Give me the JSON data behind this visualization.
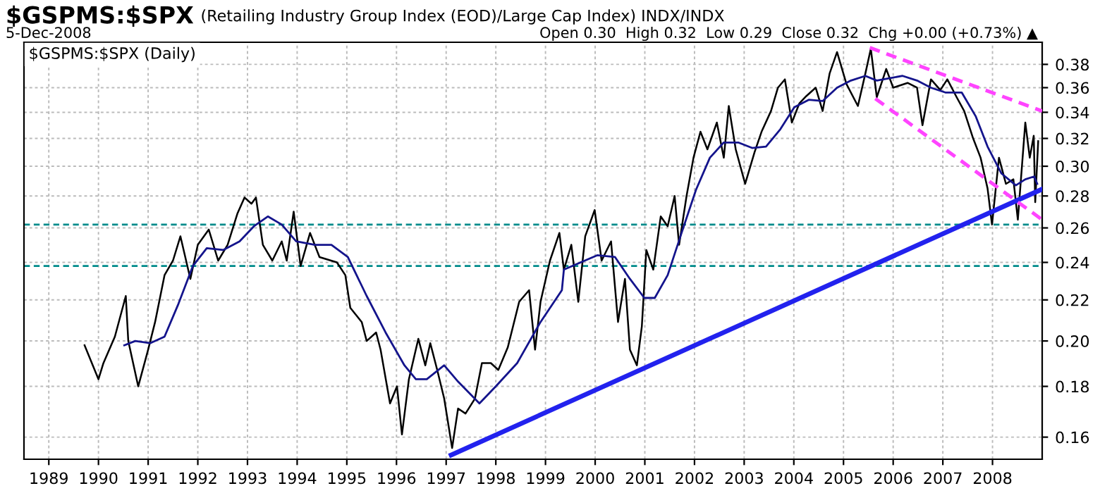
{
  "chart_data": {
    "type": "line",
    "title": "$GSPMS:$SPX",
    "subtitle": "(Retailing Industry Group Index (EOD)/Large Cap Index) INDX/INDX",
    "annotations": [
      "5-Dec-2008",
      "Open 0.30  High 0.32  Low 0.29  Close 0.32  Chg +0.00 (+0.73%) ▲"
    ],
    "log": "y",
    "grid": true,
    "legend": "top left",
    "xlim": [
      1988.5,
      2009.0
    ],
    "xticks": [
      1989,
      1990,
      1991,
      1992,
      1993,
      1994,
      1995,
      1996,
      1997,
      1998,
      1999,
      2000,
      2001,
      2002,
      2003,
      2004,
      2005,
      2006,
      2007,
      2008
    ],
    "ylim": [
      0.152,
      0.4
    ],
    "yticks": [
      0.16,
      0.18,
      {
        "value": 0.2,
        "label": "0.20"
      },
      0.22,
      0.24,
      0.26,
      0.28,
      {
        "value": 0.3,
        "label": "0.30"
      },
      0.32,
      0.34,
      0.36,
      0.38
    ],
    "ref_lines": [
      {
        "axis": "y",
        "value": 0.262,
        "color": "#008b8b",
        "line_style": "dashed"
      },
      {
        "axis": "y",
        "value": 0.238,
        "color": "#008b8b",
        "line_style": "dashed"
      }
    ],
    "series": [
      {
        "name": "$GSPMS:$SPX (Daily)",
        "color": "#000000",
        "x": [
          1989.72,
          1990.0,
          1990.1,
          1990.33,
          1990.55,
          1990.6,
          1990.8,
          1991.0,
          1991.14,
          1991.33,
          1991.5,
          1991.65,
          1991.85,
          1992.0,
          1992.22,
          1992.41,
          1992.6,
          1992.8,
          1992.94,
          1993.08,
          1993.17,
          1993.31,
          1993.5,
          1993.69,
          1993.79,
          1993.93,
          1994.07,
          1994.26,
          1994.45,
          1994.8,
          1994.97,
          1995.07,
          1995.3,
          1995.4,
          1995.59,
          1995.68,
          1995.87,
          1996.01,
          1996.11,
          1996.25,
          1996.44,
          1996.58,
          1996.68,
          1996.82,
          1996.96,
          1997.12,
          1997.24,
          1997.39,
          1997.58,
          1997.72,
          1997.9,
          1998.05,
          1998.24,
          1998.47,
          1998.67,
          1998.79,
          1998.9,
          1999.09,
          1999.28,
          1999.37,
          1999.52,
          1999.66,
          1999.8,
          1999.99,
          2000.13,
          2000.32,
          2000.46,
          2000.6,
          2000.7,
          2000.84,
          2000.94,
          2001.03,
          2001.17,
          2001.32,
          2001.46,
          2001.6,
          2001.69,
          2001.84,
          2001.98,
          2002.12,
          2002.26,
          2002.45,
          2002.59,
          2002.69,
          2002.83,
          2003.02,
          2003.21,
          2003.35,
          2003.54,
          2003.68,
          2003.82,
          2003.96,
          2004.11,
          2004.25,
          2004.44,
          2004.58,
          2004.72,
          2004.87,
          2005.06,
          2005.29,
          2005.44,
          2005.55,
          2005.67,
          2005.86,
          2006.0,
          2006.29,
          2006.48,
          2006.59,
          2006.76,
          2006.95,
          2007.09,
          2007.28,
          2007.43,
          2007.61,
          2007.76,
          2007.9,
          2007.99,
          2008.13,
          2008.27,
          2008.42,
          2008.51,
          2008.66,
          2008.75,
          2008.83,
          2008.86,
          2008.92
        ],
        "values": [
          0.198,
          0.183,
          0.19,
          0.202,
          0.222,
          0.2,
          0.18,
          0.196,
          0.209,
          0.233,
          0.241,
          0.255,
          0.231,
          0.25,
          0.259,
          0.241,
          0.25,
          0.269,
          0.279,
          0.275,
          0.279,
          0.25,
          0.241,
          0.252,
          0.241,
          0.27,
          0.238,
          0.257,
          0.243,
          0.24,
          0.233,
          0.216,
          0.209,
          0.2,
          0.204,
          0.196,
          0.173,
          0.18,
          0.161,
          0.183,
          0.201,
          0.189,
          0.199,
          0.187,
          0.175,
          0.156,
          0.171,
          0.169,
          0.175,
          0.19,
          0.19,
          0.187,
          0.197,
          0.219,
          0.225,
          0.196,
          0.219,
          0.241,
          0.257,
          0.236,
          0.25,
          0.219,
          0.255,
          0.271,
          0.241,
          0.252,
          0.209,
          0.231,
          0.196,
          0.189,
          0.207,
          0.247,
          0.236,
          0.267,
          0.261,
          0.28,
          0.25,
          0.28,
          0.306,
          0.325,
          0.312,
          0.332,
          0.306,
          0.345,
          0.312,
          0.288,
          0.31,
          0.325,
          0.341,
          0.36,
          0.367,
          0.332,
          0.347,
          0.353,
          0.36,
          0.341,
          0.372,
          0.391,
          0.363,
          0.345,
          0.372,
          0.394,
          0.352,
          0.376,
          0.36,
          0.364,
          0.36,
          0.33,
          0.367,
          0.358,
          0.367,
          0.352,
          0.341,
          0.32,
          0.306,
          0.285,
          0.262,
          0.306,
          0.288,
          0.291,
          0.265,
          0.332,
          0.306,
          0.322,
          0.276,
          0.318
        ]
      },
      {
        "color": "#14148c",
        "x": [
          1990.52,
          1990.74,
          1991.04,
          1991.33,
          1991.61,
          1991.9,
          1992.18,
          1992.51,
          1992.84,
          1993.13,
          1993.41,
          1993.69,
          1993.98,
          1994.36,
          1994.69,
          1995.02,
          1995.4,
          1995.78,
          1996.16,
          1996.39,
          1996.61,
          1996.96,
          1997.24,
          1997.67,
          1998.0,
          1998.43,
          1998.9,
          1999.33,
          1999.37,
          2000.04,
          2000.4,
          2000.7,
          2000.99,
          2001.2,
          2001.46,
          2001.74,
          2002.03,
          2002.31,
          2002.59,
          2002.88,
          2003.16,
          2003.44,
          2003.73,
          2004.01,
          2004.3,
          2004.58,
          2004.87,
          2005.15,
          2005.44,
          2005.67,
          2006.19,
          2006.48,
          2006.76,
          2007.05,
          2007.38,
          2007.66,
          2007.9,
          2008.18,
          2008.47,
          2008.66,
          2008.84,
          2008.9
        ],
        "values": [
          0.198,
          0.2,
          0.199,
          0.202,
          0.218,
          0.238,
          0.248,
          0.247,
          0.252,
          0.261,
          0.267,
          0.262,
          0.252,
          0.25,
          0.25,
          0.243,
          0.222,
          0.204,
          0.189,
          0.183,
          0.183,
          0.189,
          0.182,
          0.173,
          0.18,
          0.19,
          0.209,
          0.225,
          0.236,
          0.244,
          0.243,
          0.231,
          0.221,
          0.221,
          0.233,
          0.257,
          0.284,
          0.306,
          0.317,
          0.317,
          0.313,
          0.314,
          0.327,
          0.344,
          0.35,
          0.349,
          0.36,
          0.366,
          0.37,
          0.366,
          0.37,
          0.366,
          0.36,
          0.356,
          0.356,
          0.337,
          0.314,
          0.295,
          0.287,
          0.291,
          0.293,
          0.288
        ]
      },
      {
        "color": "#2222ee",
        "x": [
          1997.1,
          2009.0
        ],
        "values": [
          0.1535,
          0.2845
        ]
      },
      {
        "color": "#ff44ff",
        "line_style": "dashed",
        "x": [
          2005.53,
          2009.0
        ],
        "values": [
          0.395,
          0.341
        ]
      },
      {
        "color": "#ff44ff",
        "line_style": "dashed",
        "x": [
          2005.64,
          2009.0
        ],
        "values": [
          0.351,
          0.265
        ]
      }
    ]
  }
}
